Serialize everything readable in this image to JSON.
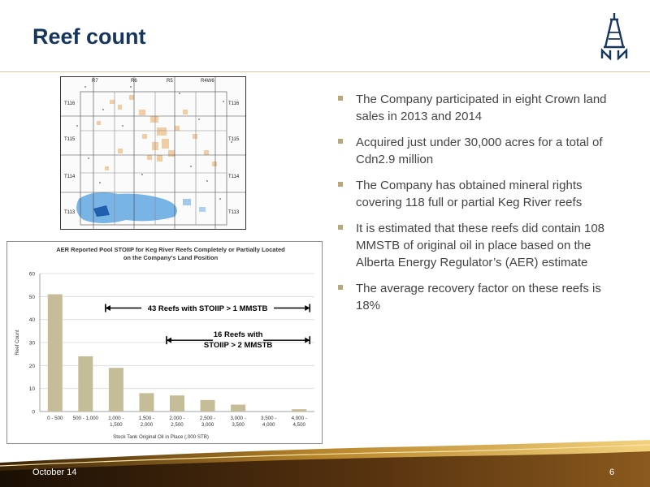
{
  "slide": {
    "title": "Reef count",
    "date": "October 14",
    "page_number": "6"
  },
  "map": {
    "range_labels": [
      "R7",
      "R6",
      "R5",
      "R4W6"
    ],
    "township_labels_left": [
      "T116",
      "T115",
      "T114",
      "T113"
    ],
    "township_labels_right": [
      "T116",
      "T115",
      "T114",
      "T113"
    ]
  },
  "bullets": [
    "The Company participated in eight Crown land sales in 2013 and 2014",
    "Acquired just under 30,000 acres for a total of Cdn2.9 million",
    "The Company has obtained mineral rights covering 118 full or partial Keg River reefs",
    "It is estimated that these reefs did contain 108 MMSTB of original oil in place based on the Alberta Energy Regulator’s (AER) estimate",
    "The average recovery factor on these reefs is 18%"
  ],
  "colors": {
    "title": "#17365d",
    "bar": "#c4bd97",
    "bullet_marker": "#b7a77a"
  },
  "chart_data": {
    "type": "bar",
    "title": "AER Reported Pool STOIIP for Keg River Reefs Completely or Partially Located on the Company's Land Position",
    "title_lines": [
      "AER Reported Pool STOIIP for Keg River Reefs Completely or Partially Located",
      "on the Company's Land Position"
    ],
    "categories": [
      "0 - 500",
      "500 - 1,000",
      "1,000 - 1,500",
      "1,500 - 2,000",
      "2,000 - 2,500",
      "2,500 - 3,000",
      "3,000 - 3,500",
      "3,500 - 4,000",
      "4,000 - 4,500"
    ],
    "category_lines": [
      [
        "0 - 500"
      ],
      [
        "500 - 1,000"
      ],
      [
        "1,000 -",
        "1,500"
      ],
      [
        "1,500 -",
        "2,000"
      ],
      [
        "2,000 -",
        "2,500"
      ],
      [
        "2,500 -",
        "3,000"
      ],
      [
        "3,000 -",
        "3,500"
      ],
      [
        "3,500 -",
        "4,000"
      ],
      [
        "4,000 -",
        "4,500"
      ]
    ],
    "values": [
      51,
      24,
      19,
      8,
      7,
      5,
      3,
      0,
      1
    ],
    "xlabel": "Stock Tank Original Oil in Place (,000 STB)",
    "ylabel": "Reef Count",
    "ylim": [
      0,
      60
    ],
    "yticks": [
      0,
      10,
      20,
      30,
      40,
      50,
      60
    ],
    "grid": true,
    "annotations": [
      {
        "lines": [
          "43 Reefs with STOIIP > 1 MMSTB"
        ],
        "from_category": 2,
        "to_category": 8,
        "y": 45
      },
      {
        "lines": [
          "16 Reefs with",
          "STOIIP > 2 MMSTB"
        ],
        "from_category": 4,
        "to_category": 8,
        "y": 31
      }
    ]
  }
}
